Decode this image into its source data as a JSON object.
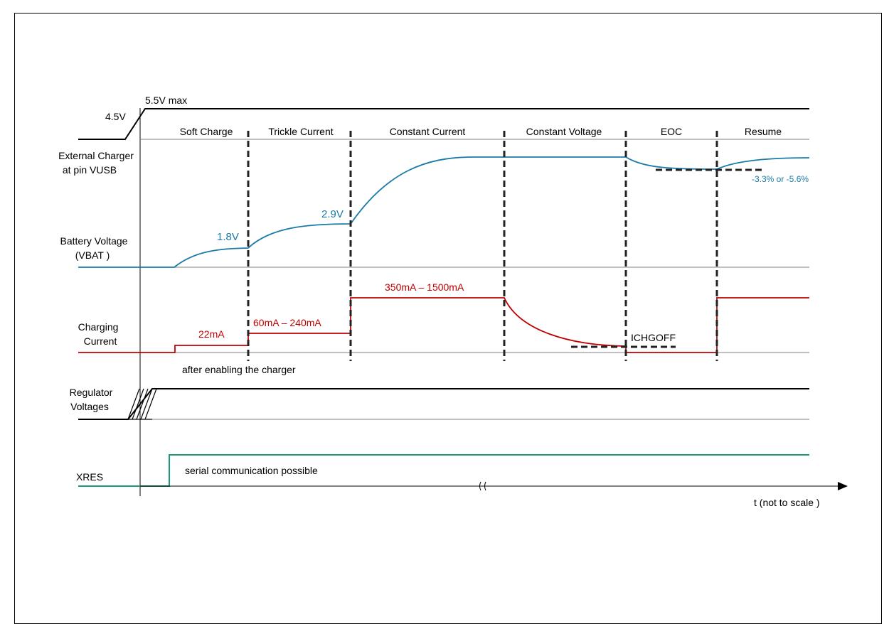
{
  "colors": {
    "black": "#000000",
    "gridline": "#808080",
    "battery_voltage": "#1a7aa8",
    "charging_current": "#c00000",
    "xres": "#1a9a7a"
  },
  "row_labels": {
    "external_charger": [
      "External Charger",
      "at pin VUSB"
    ],
    "battery_voltage": [
      "Battery Voltage",
      "(VBAT )"
    ],
    "charging_current": [
      "Charging",
      "Current"
    ],
    "regulator_voltages": [
      "Regulator",
      "Voltages"
    ],
    "xres": "XRES"
  },
  "phases": [
    "Soft Charge",
    "Trickle Current",
    "Constant Current",
    "Constant Voltage",
    "EOC",
    "Resume"
  ],
  "annotations": {
    "vusb_min": "4.5V",
    "vusb_max": "5.5V max",
    "vbat_soft_end": "1.8V",
    "vbat_trickle_end": "2.9V",
    "resume_threshold": "-3.3% or -5.6%",
    "current_soft": "22mA",
    "current_trickle": "60mA – 240mA",
    "current_cc": "350mA – 1500mA",
    "ichgoff": "ICHGOFF",
    "after_enable": "after enabling the charger",
    "serial_comm": "serial communication possible",
    "time_axis": "t (not to scale )"
  }
}
